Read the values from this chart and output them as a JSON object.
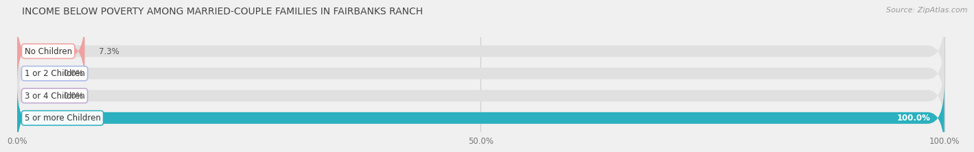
{
  "title": "INCOME BELOW POVERTY AMONG MARRIED-COUPLE FAMILIES IN FAIRBANKS RANCH",
  "source": "Source: ZipAtlas.com",
  "categories": [
    "No Children",
    "1 or 2 Children",
    "3 or 4 Children",
    "5 or more Children"
  ],
  "values": [
    7.3,
    0.0,
    0.0,
    100.0
  ],
  "bar_colors": [
    "#f0a0a0",
    "#a8b8e8",
    "#c0a8d0",
    "#2ab0be"
  ],
  "text_color": "#555555",
  "title_color": "#444444",
  "bg_color": "#f0f0f0",
  "bar_bg_color": "#e0e0e0",
  "tick_labels": [
    "0.0%",
    "50.0%",
    "100.0%"
  ],
  "tick_values": [
    0,
    50,
    100
  ],
  "bar_height": 0.52
}
